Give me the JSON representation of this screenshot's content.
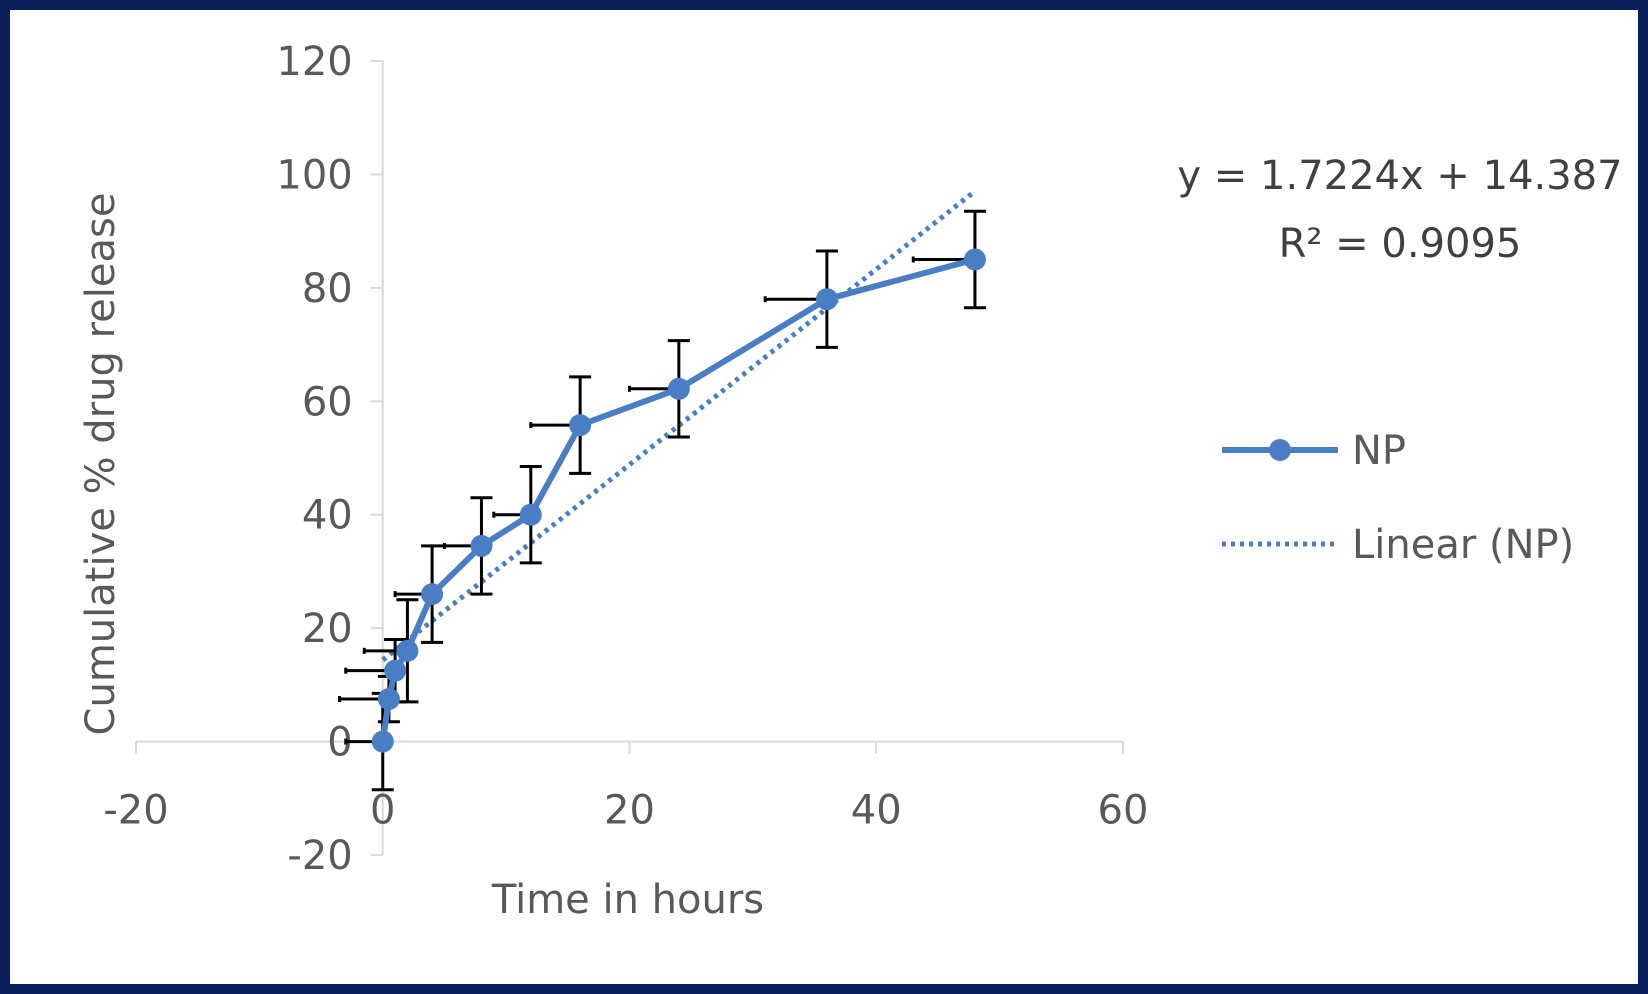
{
  "chart_data": {
    "type": "line",
    "title": "",
    "xlabel": "Time in hours",
    "ylabel": "Cumulative % drug release",
    "xlim": [
      -20,
      60
    ],
    "ylim": [
      -20,
      120
    ],
    "x_ticks": [
      -20,
      0,
      20,
      40,
      60
    ],
    "y_ticks": [
      -20,
      0,
      20,
      40,
      60,
      80,
      100,
      120
    ],
    "x_tick_labels": [
      "-20",
      "0",
      "20",
      "40",
      "60"
    ],
    "y_tick_labels": [
      "-20",
      "0",
      "20",
      "40",
      "60",
      "80",
      "100",
      "120"
    ],
    "grid": false,
    "legend_position": "right",
    "colors": {
      "series": "#4a7ec4",
      "error_bars": "#000000",
      "axis": "#d9d9d9"
    },
    "series": [
      {
        "name": "NP",
        "x": [
          0,
          0.5,
          1,
          2,
          4,
          8,
          12,
          16,
          24,
          36,
          48
        ],
        "y": [
          0,
          7.5,
          12.5,
          16,
          26,
          34.5,
          40,
          55.8,
          62.2,
          78,
          85
        ],
        "y_error": [
          8.5,
          4,
          5.5,
          9,
          8.5,
          8.5,
          8.5,
          8.5,
          8.5,
          8.5,
          8.5
        ],
        "x_error": [
          3,
          4,
          4,
          3.5,
          3,
          3,
          3,
          4,
          4,
          5,
          5
        ]
      }
    ],
    "trendline": {
      "name": "Linear (NP)",
      "type": "linear",
      "slope": 1.7224,
      "intercept": 14.387,
      "x_range": [
        0,
        48
      ],
      "equation_text": "y = 1.7224x + 14.387",
      "r2_text": "R² = 0.9095"
    },
    "legend": [
      "NP",
      "Linear (NP)"
    ]
  }
}
